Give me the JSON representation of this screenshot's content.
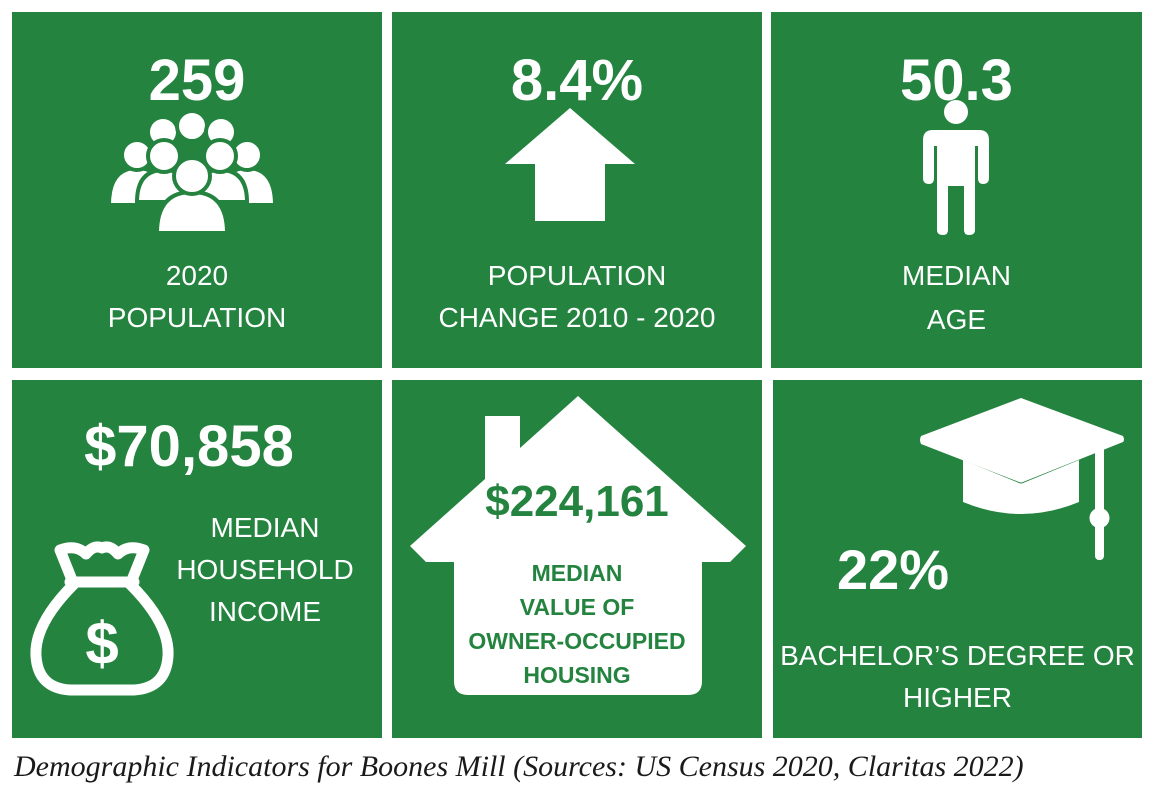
{
  "colors": {
    "tile": "#23833f",
    "text": "#ffffff",
    "caption": "#1a1a1a"
  },
  "tiles": {
    "population": {
      "value": "259",
      "label_line1": "2020",
      "label_line2": "POPULATION",
      "icon": "people-group-icon"
    },
    "population_change": {
      "value": "8.4%",
      "label_line1": "POPULATION",
      "label_line2": "CHANGE 2010 - 2020",
      "icon": "arrow-up-icon"
    },
    "median_age": {
      "value": "50.3",
      "label_line1": "MEDIAN",
      "label_line2": "AGE",
      "icon": "person-icon"
    },
    "household_income": {
      "value": "$70,858",
      "label_line1": "MEDIAN",
      "label_line2": "HOUSEHOLD",
      "label_line3": "INCOME",
      "icon": "money-bag-icon"
    },
    "home_value": {
      "value": "$224,161",
      "label_line1": "MEDIAN",
      "label_line2": "VALUE OF",
      "label_line3": "OWNER-OCCUPIED",
      "label_line4": "HOUSING",
      "icon": "house-icon"
    },
    "education": {
      "value": "22%",
      "label_line1": "BACHELOR’S DEGREE OR",
      "label_line2": "HIGHER",
      "icon": "graduation-cap-icon"
    }
  },
  "caption": "Demographic Indicators for Boones Mill (Sources: US Census 2020, Claritas 2022)"
}
